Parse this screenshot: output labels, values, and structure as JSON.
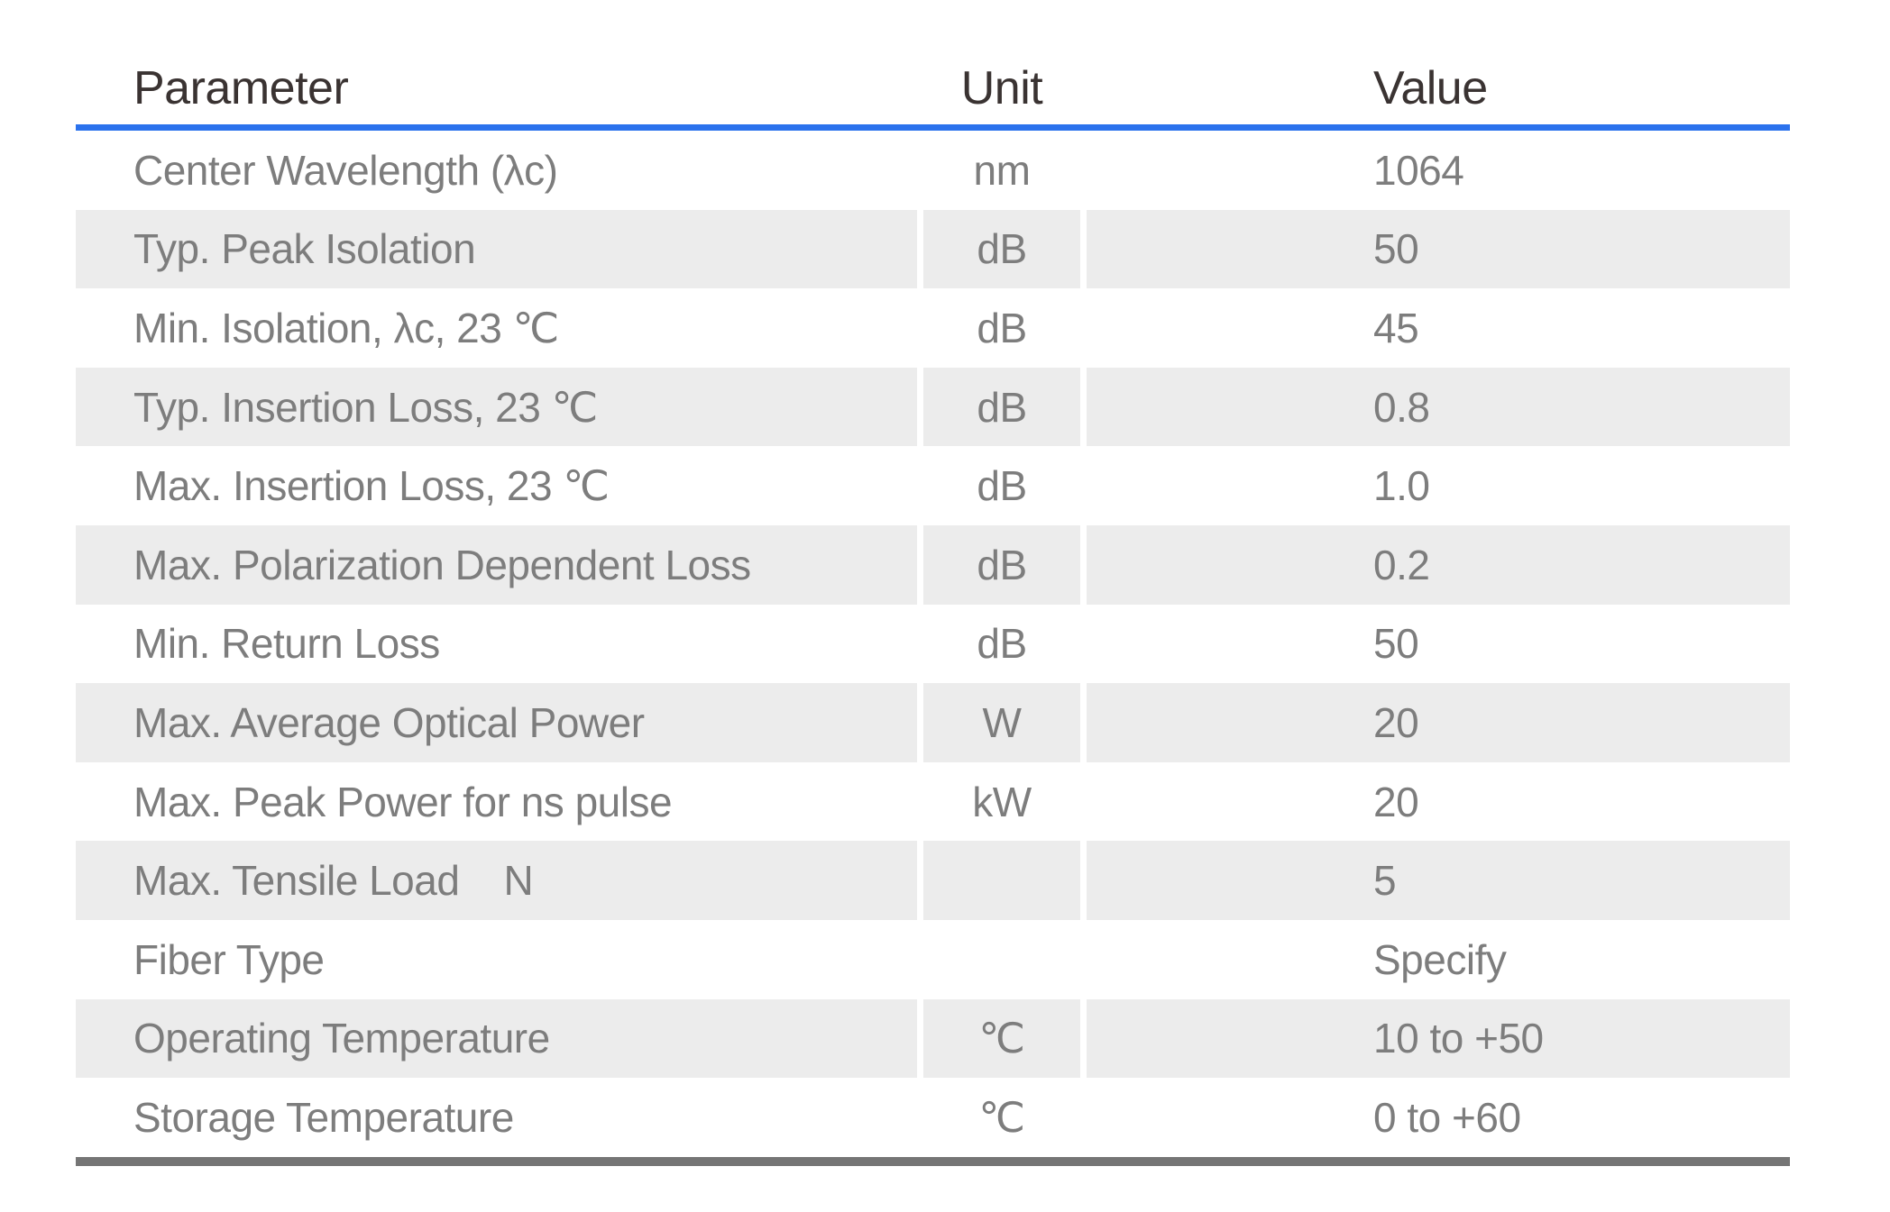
{
  "table": {
    "columns": [
      {
        "key": "parameter",
        "label": "Parameter"
      },
      {
        "key": "unit",
        "label": "Unit"
      },
      {
        "key": "value",
        "label": "Value"
      }
    ],
    "rows": [
      {
        "parameter": "Center Wavelength (λc)",
        "unit": "nm",
        "value": "1064"
      },
      {
        "parameter": "Typ. Peak Isolation",
        "unit": "dB",
        "value": "50"
      },
      {
        "parameter": "Min. Isolation, λc, 23 ℃",
        "unit": "dB",
        "value": "45"
      },
      {
        "parameter": "Typ. Insertion Loss, 23 ℃",
        "unit": "dB",
        "value": "0.8"
      },
      {
        "parameter": "Max. Insertion Loss, 23 ℃",
        "unit": "dB",
        "value": "1.0"
      },
      {
        "parameter": "Max. Polarization Dependent Loss",
        "unit": "dB",
        "value": "0.2"
      },
      {
        "parameter": "Min. Return Loss",
        "unit": "dB",
        "value": "50"
      },
      {
        "parameter": "Max. Average Optical Power",
        "unit": "W",
        "value": "20"
      },
      {
        "parameter": "Max. Peak Power for ns pulse",
        "unit": "kW",
        "value": "20"
      },
      {
        "parameter": "Max. Tensile Load    N",
        "unit": "",
        "value": "5"
      },
      {
        "parameter": "Fiber Type",
        "unit": "",
        "value": "Specify"
      },
      {
        "parameter": "Operating Temperature",
        "unit": "℃",
        "value": "10 to +50"
      },
      {
        "parameter": "Storage Temperature",
        "unit": "℃",
        "value": "0 to +60"
      }
    ],
    "colors": {
      "background": "#ffffff",
      "accent_blue": "#2b72ed",
      "row_alt_bg": "#ececec",
      "body_text": "#7d7d7d",
      "header_text": "#3a3332",
      "bottom_rule": "#757575"
    }
  }
}
